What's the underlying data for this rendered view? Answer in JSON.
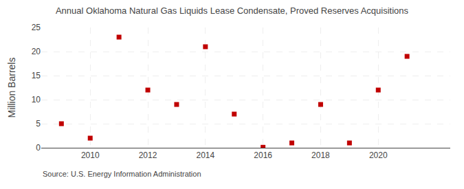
{
  "chart_data": {
    "type": "scatter",
    "title": "Annual Oklahoma Natural Gas Liquids Lease Condensate, Proved Reserves Acquisitions",
    "ylabel": "Million Barrels",
    "annotations": [
      "Source: U.S. Energy Information Administration"
    ],
    "x": [
      2009,
      2010,
      2011,
      2012,
      2013,
      2014,
      2015,
      2016,
      2017,
      2018,
      2019,
      2020,
      2021
    ],
    "values": [
      5.0,
      2.0,
      23.0,
      12.0,
      9.0,
      21.0,
      7.0,
      0.1,
      1.0,
      9.0,
      1.0,
      12.0,
      19.0
    ],
    "color": "#c00000",
    "marker": "square",
    "xlim": [
      2008.3,
      2022.5
    ],
    "ylim": [
      0,
      25
    ],
    "xticks": [
      2010,
      2012,
      2014,
      2016,
      2018,
      2020
    ],
    "yticks": [
      0,
      5,
      10,
      15,
      20,
      25
    ],
    "grid": true
  }
}
